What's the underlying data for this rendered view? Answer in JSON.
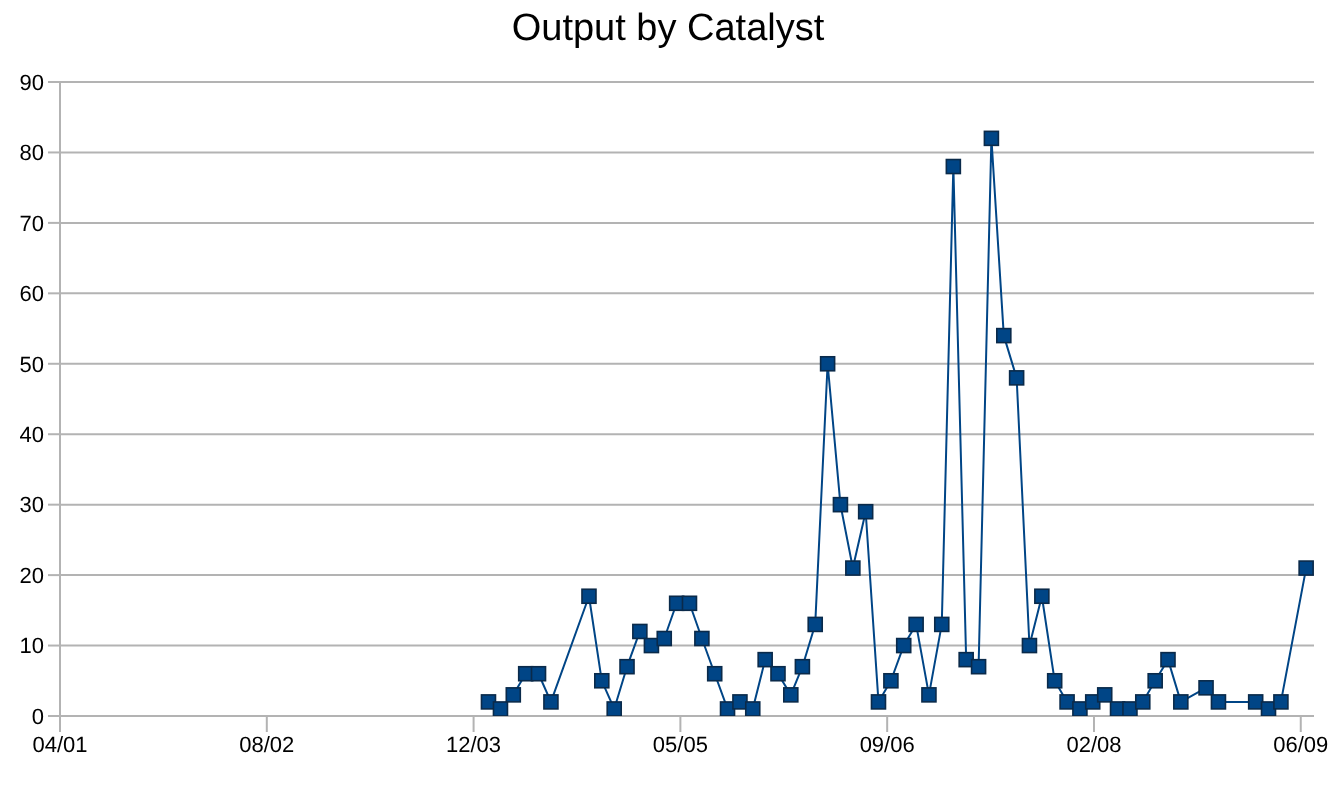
{
  "chart_data": {
    "type": "line",
    "title": "Output by Catalyst",
    "x": [
      "2004-02",
      "2004-03",
      "2004-04",
      "2004-05",
      "2004-06",
      "2004-07",
      "2004-10",
      "2004-11",
      "2004-12",
      "2005-01",
      "2005-02",
      "2005-03",
      "2005-04",
      "2005-05",
      "2005-06",
      "2005-07",
      "2005-08",
      "2005-09",
      "2005-10",
      "2005-11",
      "2005-12",
      "2006-01",
      "2006-02",
      "2006-03",
      "2006-04",
      "2006-05",
      "2006-06",
      "2006-07",
      "2006-08",
      "2006-09",
      "2006-10",
      "2006-11",
      "2006-12",
      "2007-01",
      "2007-02",
      "2007-03",
      "2007-04",
      "2007-05",
      "2007-06",
      "2007-07",
      "2007-08",
      "2007-09",
      "2007-10",
      "2007-11",
      "2007-12",
      "2008-01",
      "2008-02",
      "2008-03",
      "2008-04",
      "2008-05",
      "2008-06",
      "2008-07",
      "2008-08",
      "2008-09",
      "2008-11",
      "2008-12",
      "2009-03",
      "2009-04",
      "2009-05",
      "2009-07"
    ],
    "series": [
      {
        "color": "#004586",
        "values": [
          2,
          1,
          3,
          6,
          6,
          2,
          17,
          5,
          1,
          7,
          12,
          10,
          11,
          16,
          16,
          11,
          6,
          1,
          2,
          1,
          8,
          6,
          3,
          7,
          13,
          50,
          30,
          21,
          29,
          2,
          5,
          10,
          13,
          3,
          13,
          78,
          8,
          7,
          82,
          54,
          48,
          10,
          17,
          5,
          2,
          1,
          2,
          3,
          1,
          1,
          2,
          5,
          8,
          2,
          4,
          2,
          2,
          1,
          2,
          21
        ]
      }
    ],
    "xlim": [
      "2001-04-01",
      "2009-07-20"
    ],
    "xticks": [
      {
        "value": "2001-04-01",
        "label": "04/01"
      },
      {
        "value": "2002-08-14",
        "label": "08/02"
      },
      {
        "value": "2003-12-27",
        "label": "12/03"
      },
      {
        "value": "2005-05-10",
        "label": "05/05"
      },
      {
        "value": "2006-09-22",
        "label": "09/06"
      },
      {
        "value": "2008-02-04",
        "label": "02/08"
      },
      {
        "value": "2009-06-18",
        "label": "06/09"
      }
    ],
    "ylim": [
      0,
      90
    ],
    "yticks": [
      0,
      10,
      20,
      30,
      40,
      50,
      60,
      70,
      80,
      90
    ],
    "grid": "y",
    "marker": "square",
    "line_style": "solid",
    "legend": false
  }
}
